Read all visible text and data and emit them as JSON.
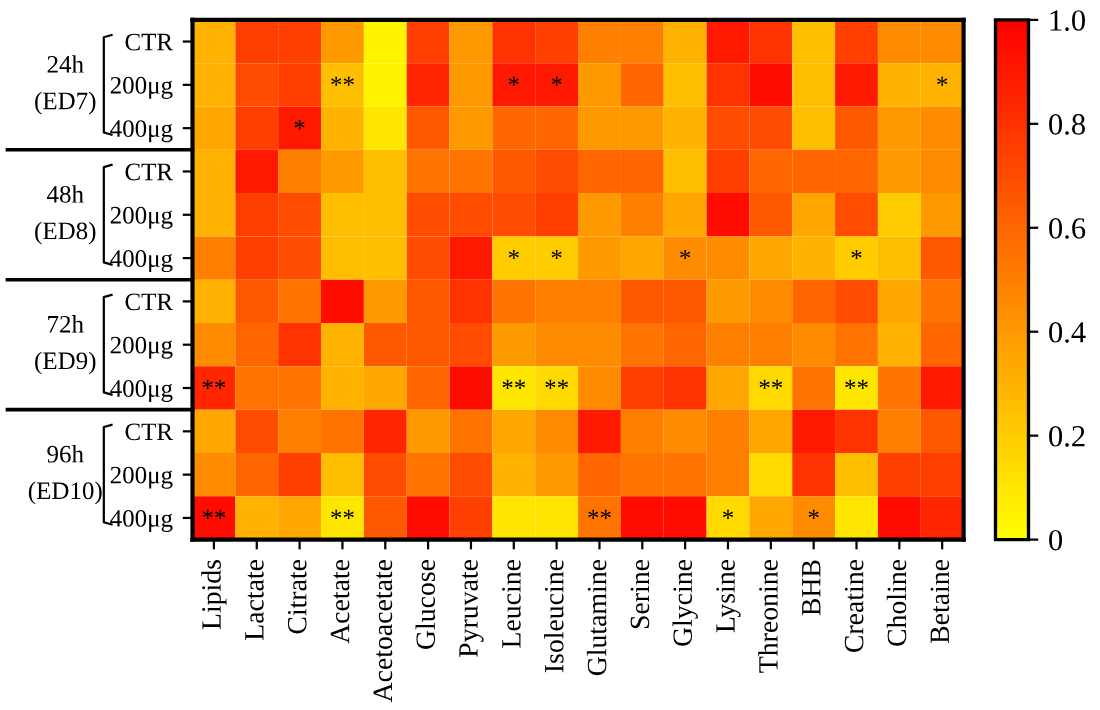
{
  "chart_data": {
    "type": "heatmap",
    "categories": [
      "Lipids",
      "Lactate",
      "Citrate",
      "Acetate",
      "Acetoacetate",
      "Glucose",
      "Pyruvate",
      "Leucine",
      "Isoleucine",
      "Glutamine",
      "Serine",
      "Glycine",
      "Lysine",
      "Threonine",
      "BHB",
      "Creatine",
      "Choline",
      "Betaine"
    ],
    "y_categories": [
      "CTR",
      "200μg",
      "400μg",
      "CTR",
      "200μg",
      "400μg",
      "CTR",
      "200μg",
      "400μg",
      "CTR",
      "200μg",
      "400μg"
    ],
    "annotations": [
      "24h\n(ED7)",
      "48h\n(ED8)",
      "72h\n(ED9)",
      "96h\n(ED10)"
    ],
    "cells": [
      [
        0.3,
        0.75,
        0.75,
        0.4,
        0.05,
        0.75,
        0.4,
        0.8,
        0.75,
        0.5,
        0.5,
        0.3,
        0.9,
        0.8,
        0.25,
        0.75,
        0.45,
        0.45
      ],
      [
        0.3,
        0.7,
        0.75,
        0.25,
        0.05,
        0.85,
        0.4,
        0.9,
        0.9,
        0.4,
        0.6,
        0.25,
        0.8,
        0.95,
        0.25,
        0.9,
        0.3,
        0.3
      ],
      [
        0.35,
        0.75,
        0.9,
        0.3,
        0.1,
        0.65,
        0.4,
        0.6,
        0.6,
        0.4,
        0.4,
        0.3,
        0.7,
        0.7,
        0.25,
        0.65,
        0.4,
        0.45
      ],
      [
        0.3,
        0.9,
        0.5,
        0.4,
        0.25,
        0.55,
        0.55,
        0.65,
        0.7,
        0.6,
        0.6,
        0.25,
        0.75,
        0.6,
        0.6,
        0.6,
        0.4,
        0.45
      ],
      [
        0.3,
        0.75,
        0.7,
        0.25,
        0.25,
        0.7,
        0.7,
        0.7,
        0.75,
        0.4,
        0.5,
        0.35,
        0.95,
        0.65,
        0.35,
        0.7,
        0.2,
        0.4
      ],
      [
        0.5,
        0.75,
        0.7,
        0.25,
        0.25,
        0.7,
        0.9,
        0.2,
        0.2,
        0.4,
        0.35,
        0.45,
        0.45,
        0.35,
        0.3,
        0.2,
        0.25,
        0.65
      ],
      [
        0.3,
        0.65,
        0.55,
        0.95,
        0.4,
        0.65,
        0.8,
        0.55,
        0.5,
        0.5,
        0.65,
        0.65,
        0.4,
        0.45,
        0.6,
        0.7,
        0.35,
        0.55
      ],
      [
        0.45,
        0.6,
        0.8,
        0.3,
        0.65,
        0.65,
        0.7,
        0.4,
        0.45,
        0.45,
        0.55,
        0.6,
        0.5,
        0.5,
        0.45,
        0.55,
        0.3,
        0.6
      ],
      [
        0.85,
        0.55,
        0.55,
        0.3,
        0.35,
        0.6,
        0.95,
        0.1,
        0.15,
        0.45,
        0.75,
        0.8,
        0.35,
        0.15,
        0.55,
        0.1,
        0.55,
        0.9
      ],
      [
        0.35,
        0.7,
        0.5,
        0.55,
        0.85,
        0.4,
        0.55,
        0.35,
        0.45,
        0.9,
        0.5,
        0.45,
        0.5,
        0.35,
        0.9,
        0.8,
        0.5,
        0.65
      ],
      [
        0.45,
        0.6,
        0.75,
        0.25,
        0.7,
        0.55,
        0.7,
        0.3,
        0.4,
        0.6,
        0.55,
        0.55,
        0.5,
        0.15,
        0.8,
        0.25,
        0.75,
        0.75
      ],
      [
        0.95,
        0.3,
        0.35,
        0.1,
        0.65,
        0.95,
        0.75,
        0.1,
        0.1,
        0.55,
        0.95,
        0.95,
        0.15,
        0.35,
        0.45,
        0.1,
        0.95,
        0.85
      ]
    ],
    "cell_labels": [
      [
        null,
        null,
        null,
        null,
        null,
        null,
        null,
        null,
        null,
        null,
        null,
        null,
        null,
        null,
        null,
        null,
        null,
        null
      ],
      [
        null,
        null,
        null,
        "**",
        null,
        null,
        null,
        "*",
        "*",
        null,
        null,
        null,
        null,
        null,
        null,
        null,
        null,
        "*"
      ],
      [
        null,
        null,
        "*",
        null,
        null,
        null,
        null,
        null,
        null,
        null,
        null,
        null,
        null,
        null,
        null,
        null,
        null,
        null
      ],
      [
        null,
        null,
        null,
        null,
        null,
        null,
        null,
        null,
        null,
        null,
        null,
        null,
        null,
        null,
        null,
        null,
        null,
        null
      ],
      [
        null,
        null,
        null,
        null,
        null,
        null,
        null,
        null,
        null,
        null,
        null,
        null,
        null,
        null,
        null,
        null,
        null,
        null
      ],
      [
        null,
        null,
        null,
        null,
        null,
        null,
        null,
        "*",
        "*",
        null,
        null,
        "*",
        null,
        null,
        null,
        "*",
        null,
        null
      ],
      [
        null,
        null,
        null,
        null,
        null,
        null,
        null,
        null,
        null,
        null,
        null,
        null,
        null,
        null,
        null,
        null,
        null,
        null
      ],
      [
        null,
        null,
        null,
        null,
        null,
        null,
        null,
        null,
        null,
        null,
        null,
        null,
        null,
        null,
        null,
        null,
        null,
        null
      ],
      [
        "**",
        null,
        null,
        null,
        null,
        null,
        null,
        "**",
        "**",
        null,
        null,
        null,
        null,
        "**",
        null,
        "**",
        null,
        null
      ],
      [
        null,
        null,
        null,
        null,
        null,
        null,
        null,
        null,
        null,
        null,
        null,
        null,
        null,
        null,
        null,
        null,
        null,
        null
      ],
      [
        null,
        null,
        null,
        null,
        null,
        null,
        null,
        null,
        null,
        null,
        null,
        null,
        null,
        null,
        null,
        null,
        null,
        null
      ],
      [
        "**",
        null,
        null,
        "**",
        null,
        null,
        null,
        null,
        null,
        "**",
        null,
        null,
        "*",
        null,
        "*",
        null,
        null,
        null
      ]
    ],
    "clim": [
      0,
      1
    ],
    "cticks": [
      0,
      0.2,
      0.4,
      0.6,
      0.8,
      {
        "value": 1,
        "label": "1.0"
      }
    ]
  }
}
